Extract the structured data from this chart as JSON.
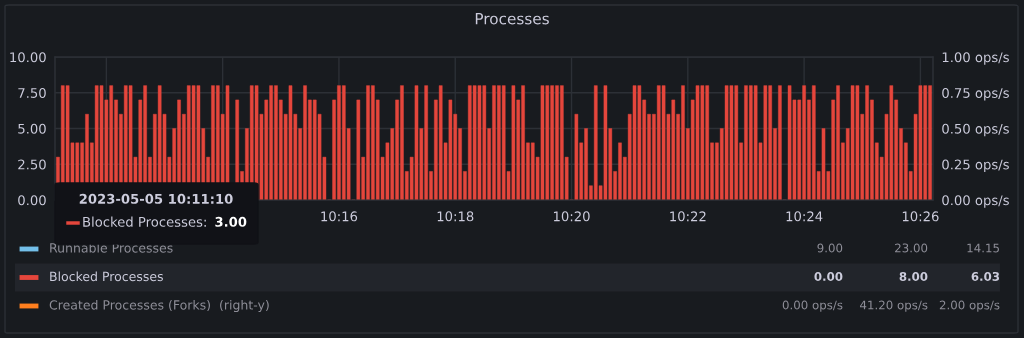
{
  "chart_data": {
    "type": "bar",
    "title": "Processes",
    "x": [
      "2023-05-05T10:11:10",
      "2023-05-05T10:11:15",
      "2023-05-05T10:11:20",
      "2023-05-05T10:11:25",
      "2023-05-05T10:11:30",
      "2023-05-05T10:11:35",
      "2023-05-05T10:11:40",
      "2023-05-05T10:11:45",
      "2023-05-05T10:11:50",
      "2023-05-05T10:11:55",
      "2023-05-05T10:12:00",
      "2023-05-05T10:12:05",
      "2023-05-05T10:12:10",
      "2023-05-05T10:12:15",
      "2023-05-05T10:12:20",
      "2023-05-05T10:12:25",
      "2023-05-05T10:12:30",
      "2023-05-05T10:12:35",
      "2023-05-05T10:12:40",
      "2023-05-05T10:12:45",
      "2023-05-05T10:12:50",
      "2023-05-05T10:12:55",
      "2023-05-05T10:13:00",
      "2023-05-05T10:13:05",
      "2023-05-05T10:13:10",
      "2023-05-05T10:13:15",
      "2023-05-05T10:13:20",
      "2023-05-05T10:13:25",
      "2023-05-05T10:13:30",
      "2023-05-05T10:13:35",
      "2023-05-05T10:13:40",
      "2023-05-05T10:13:45",
      "2023-05-05T10:13:50",
      "2023-05-05T10:13:55",
      "2023-05-05T10:14:00",
      "2023-05-05T10:14:05",
      "2023-05-05T10:14:10",
      "2023-05-05T10:14:15",
      "2023-05-05T10:14:20",
      "2023-05-05T10:14:25",
      "2023-05-05T10:14:30",
      "2023-05-05T10:14:35",
      "2023-05-05T10:14:40",
      "2023-05-05T10:14:45",
      "2023-05-05T10:14:50",
      "2023-05-05T10:14:55",
      "2023-05-05T10:15:00",
      "2023-05-05T10:15:05",
      "2023-05-05T10:15:10",
      "2023-05-05T10:15:15",
      "2023-05-05T10:15:20",
      "2023-05-05T10:15:25",
      "2023-05-05T10:15:30",
      "2023-05-05T10:15:35",
      "2023-05-05T10:15:40",
      "2023-05-05T10:15:45",
      "2023-05-05T10:15:50",
      "2023-05-05T10:15:55",
      "2023-05-05T10:16:00",
      "2023-05-05T10:16:05",
      "2023-05-05T10:16:10",
      "2023-05-05T10:16:15",
      "2023-05-05T10:16:20",
      "2023-05-05T10:16:25",
      "2023-05-05T10:16:30",
      "2023-05-05T10:16:35",
      "2023-05-05T10:16:40",
      "2023-05-05T10:16:45",
      "2023-05-05T10:16:50",
      "2023-05-05T10:16:55",
      "2023-05-05T10:17:00",
      "2023-05-05T10:17:05",
      "2023-05-05T10:17:10",
      "2023-05-05T10:17:15",
      "2023-05-05T10:17:20",
      "2023-05-05T10:17:25",
      "2023-05-05T10:17:30",
      "2023-05-05T10:17:35",
      "2023-05-05T10:17:40",
      "2023-05-05T10:17:45",
      "2023-05-05T10:17:50",
      "2023-05-05T10:17:55",
      "2023-05-05T10:18:00",
      "2023-05-05T10:18:05",
      "2023-05-05T10:18:10",
      "2023-05-05T10:18:15",
      "2023-05-05T10:18:20",
      "2023-05-05T10:18:25",
      "2023-05-05T10:18:30",
      "2023-05-05T10:18:35",
      "2023-05-05T10:18:40",
      "2023-05-05T10:18:45",
      "2023-05-05T10:18:50",
      "2023-05-05T10:18:55",
      "2023-05-05T10:19:00",
      "2023-05-05T10:19:05",
      "2023-05-05T10:19:10",
      "2023-05-05T10:19:15",
      "2023-05-05T10:19:20",
      "2023-05-05T10:19:25",
      "2023-05-05T10:19:30",
      "2023-05-05T10:19:35",
      "2023-05-05T10:19:40",
      "2023-05-05T10:19:45",
      "2023-05-05T10:19:50",
      "2023-05-05T10:19:55",
      "2023-05-05T10:20:00",
      "2023-05-05T10:20:05",
      "2023-05-05T10:20:10",
      "2023-05-05T10:20:15",
      "2023-05-05T10:20:20",
      "2023-05-05T10:20:25",
      "2023-05-05T10:20:30",
      "2023-05-05T10:20:35",
      "2023-05-05T10:20:40",
      "2023-05-05T10:20:45",
      "2023-05-05T10:20:50",
      "2023-05-05T10:20:55",
      "2023-05-05T10:21:00",
      "2023-05-05T10:21:05",
      "2023-05-05T10:21:10",
      "2023-05-05T10:21:15",
      "2023-05-05T10:21:20",
      "2023-05-05T10:21:25",
      "2023-05-05T10:21:30",
      "2023-05-05T10:21:35",
      "2023-05-05T10:21:40",
      "2023-05-05T10:21:45",
      "2023-05-05T10:21:50",
      "2023-05-05T10:21:55",
      "2023-05-05T10:22:00",
      "2023-05-05T10:22:05",
      "2023-05-05T10:22:10",
      "2023-05-05T10:22:15",
      "2023-05-05T10:22:20",
      "2023-05-05T10:22:25",
      "2023-05-05T10:22:30",
      "2023-05-05T10:22:35",
      "2023-05-05T10:22:40",
      "2023-05-05T10:22:45",
      "2023-05-05T10:22:50",
      "2023-05-05T10:22:55",
      "2023-05-05T10:23:00",
      "2023-05-05T10:23:05",
      "2023-05-05T10:23:10",
      "2023-05-05T10:23:15",
      "2023-05-05T10:23:20",
      "2023-05-05T10:23:25",
      "2023-05-05T10:23:30",
      "2023-05-05T10:23:35",
      "2023-05-05T10:23:40",
      "2023-05-05T10:23:45",
      "2023-05-05T10:23:50",
      "2023-05-05T10:23:55",
      "2023-05-05T10:24:00",
      "2023-05-05T10:24:05",
      "2023-05-05T10:24:10",
      "2023-05-05T10:24:15",
      "2023-05-05T10:24:20",
      "2023-05-05T10:24:25",
      "2023-05-05T10:24:30",
      "2023-05-05T10:24:35",
      "2023-05-05T10:24:40",
      "2023-05-05T10:24:45",
      "2023-05-05T10:24:50",
      "2023-05-05T10:24:55",
      "2023-05-05T10:25:00",
      "2023-05-05T10:25:05",
      "2023-05-05T10:25:10",
      "2023-05-05T10:25:15",
      "2023-05-05T10:25:20",
      "2023-05-05T10:25:25",
      "2023-05-05T10:25:30",
      "2023-05-05T10:25:35",
      "2023-05-05T10:25:40",
      "2023-05-05T10:25:45",
      "2023-05-05T10:25:50",
      "2023-05-05T10:25:55",
      "2023-05-05T10:26:00",
      "2023-05-05T10:26:05",
      "2023-05-05T10:26:10"
    ],
    "series": [
      {
        "name": "Runnable Processes",
        "color": "#73bfe9",
        "values": [
          null,
          null,
          null,
          null,
          null,
          null,
          null,
          null,
          null,
          null,
          null,
          null,
          null,
          null,
          null,
          null,
          null,
          null,
          null,
          null,
          null,
          null,
          null,
          null,
          null,
          null,
          null,
          null,
          null,
          null,
          null,
          null,
          null,
          null,
          null,
          null,
          null,
          null,
          null,
          null,
          null,
          null,
          null,
          null,
          null,
          null,
          null,
          null,
          null,
          null,
          null,
          null,
          null,
          null,
          null,
          null,
          null,
          null,
          null,
          null,
          null,
          null,
          null,
          null,
          null,
          null,
          null,
          null,
          null,
          null,
          null,
          null,
          null,
          null,
          null,
          null,
          null,
          null,
          null,
          null,
          null,
          null,
          null,
          null,
          null,
          null,
          null,
          null,
          null,
          null,
          null,
          null,
          null,
          null,
          null,
          null,
          null,
          null,
          null,
          null,
          null,
          null,
          null,
          null,
          null,
          null,
          null,
          null,
          null,
          null,
          null,
          null,
          null,
          null,
          null,
          null,
          null,
          null,
          null,
          null,
          null,
          null,
          null,
          null,
          null,
          null,
          null,
          null,
          null,
          null,
          null,
          null,
          null,
          null,
          null,
          null,
          null,
          null,
          null,
          null,
          null,
          null,
          null,
          null,
          null,
          null,
          null,
          null,
          null,
          null,
          null,
          null,
          null,
          null,
          null,
          null,
          null,
          null,
          null,
          null,
          null,
          null,
          null,
          null,
          null,
          null,
          null,
          null,
          null,
          null,
          null,
          null,
          null,
          null,
          null,
          null,
          null,
          null,
          null,
          null,
          null
        ]
      },
      {
        "name": "Blocked Processes",
        "color": "#e5463c",
        "values": [
          3,
          8,
          8,
          4,
          4,
          4,
          6,
          4,
          8,
          8,
          7,
          8,
          7,
          6,
          8,
          8,
          3,
          7,
          8,
          3,
          6,
          8,
          6,
          3,
          5,
          7,
          6,
          8,
          8,
          8,
          5,
          3,
          8,
          8,
          6,
          8,
          0,
          7,
          2,
          5,
          8,
          8,
          6,
          7,
          8,
          8,
          7,
          6,
          8,
          6,
          5,
          8,
          7,
          7,
          6,
          3,
          0,
          7,
          8,
          8,
          5,
          0,
          7,
          3,
          8,
          8,
          7,
          3,
          4,
          5,
          7,
          8,
          2,
          3,
          8,
          5,
          8,
          2,
          7,
          8,
          4,
          7,
          6,
          5,
          2,
          8,
          8,
          8,
          8,
          5,
          8,
          8,
          8,
          2,
          8,
          7,
          8,
          4,
          4,
          3,
          8,
          8,
          8,
          8,
          8,
          3,
          0,
          6,
          4,
          5,
          1,
          8,
          1,
          8,
          5,
          2,
          4,
          3,
          6,
          8,
          8,
          7,
          6,
          6,
          8,
          8,
          6,
          7,
          6,
          8,
          5,
          7,
          8,
          8,
          8,
          4,
          4,
          5,
          8,
          8,
          8,
          4,
          8,
          8,
          8,
          4,
          8,
          8,
          5,
          8,
          0,
          8,
          7,
          7,
          8,
          7,
          8,
          2,
          5,
          2,
          7,
          8,
          4,
          5,
          8,
          8,
          6,
          8,
          7,
          4,
          3,
          6,
          8,
          7,
          5,
          4,
          2,
          6,
          8,
          8,
          8
        ]
      },
      {
        "name": "Created Processes (Forks)  (right-y)",
        "color": "#ff7f1e",
        "values": [
          null,
          null,
          null,
          null,
          null,
          null,
          null,
          null,
          null,
          null,
          null,
          null,
          null,
          null,
          null,
          null,
          null,
          null,
          null,
          null,
          null,
          null,
          null,
          null,
          null,
          null,
          null,
          null,
          null,
          null,
          null,
          null,
          null,
          null,
          null,
          null,
          null,
          null,
          null,
          null,
          null,
          null,
          null,
          null,
          null,
          null,
          null,
          null,
          null,
          null,
          null,
          null,
          null,
          null,
          null,
          null,
          null,
          null,
          null,
          null,
          null,
          null,
          null,
          null,
          null,
          null,
          null,
          null,
          null,
          null,
          null,
          null,
          null,
          null,
          null,
          null,
          null,
          null,
          null,
          null,
          null,
          null,
          null,
          null,
          null,
          null,
          null,
          null,
          null,
          null,
          null,
          null,
          null,
          null,
          null,
          null,
          null,
          null,
          null,
          null,
          null,
          null,
          null,
          null,
          null,
          null,
          null,
          null,
          null,
          null,
          null,
          null,
          null,
          null,
          null,
          null,
          null,
          null,
          null,
          null,
          null,
          null,
          null,
          null,
          null,
          null,
          null,
          null,
          null,
          null,
          null,
          null,
          null,
          null,
          null,
          null,
          null,
          null,
          null,
          null,
          null,
          null,
          null,
          null,
          null,
          null,
          null,
          null,
          null,
          null,
          null,
          null,
          null,
          null,
          null,
          null,
          null,
          null,
          null,
          null,
          null,
          null,
          null,
          null,
          null,
          null,
          null,
          null,
          null,
          null,
          null,
          null,
          null,
          null,
          null,
          null,
          null,
          null,
          null,
          null,
          null
        ]
      }
    ],
    "xlim": [
      "2023-05-05T10:11:07",
      "2023-05-05T10:26:13"
    ],
    "xticks": [
      {
        "value": "2023-05-05T10:12",
        "label": null
      },
      {
        "value": "2023-05-05T10:14",
        "label": null
      },
      {
        "value": "2023-05-05T10:16",
        "label": "10:16"
      },
      {
        "value": "2023-05-05T10:18",
        "label": "10:18"
      },
      {
        "value": "2023-05-05T10:20",
        "label": "10:20"
      },
      {
        "value": "2023-05-05T10:22",
        "label": "10:22"
      },
      {
        "value": "2023-05-05T10:24",
        "label": "10:24"
      },
      {
        "value": "2023-05-05T10:26",
        "label": "10:26"
      }
    ],
    "ylim": [
      0,
      10
    ],
    "yticks": [
      {
        "value": 0,
        "label": "0.00"
      },
      {
        "value": 2.5,
        "label": "2.50"
      },
      {
        "value": 5,
        "label": "5.00"
      },
      {
        "value": 7.5,
        "label": "7.50"
      },
      {
        "value": 10,
        "label": "10.00"
      }
    ],
    "y2lim": [
      0,
      1
    ],
    "y2ticks": [
      {
        "value": 0,
        "label": "0.00 ops/s"
      },
      {
        "value": 0.25,
        "label": "0.25 ops/s"
      },
      {
        "value": 0.5,
        "label": "0.50 ops/s"
      },
      {
        "value": 0.75,
        "label": "0.75 ops/s"
      },
      {
        "value": 1,
        "label": "1.00 ops/s"
      }
    ],
    "grid": true,
    "legend": "bottom",
    "annotations": [
      "2023-05-05 10:11:10",
      "Blocked Processes:",
      "3.00",
      "9.00",
      "23.00",
      "14.15",
      "0.00",
      "8.00",
      "6.03",
      "0.00 ops/s",
      "41.20 ops/s",
      "2.00 ops/s"
    ]
  }
}
